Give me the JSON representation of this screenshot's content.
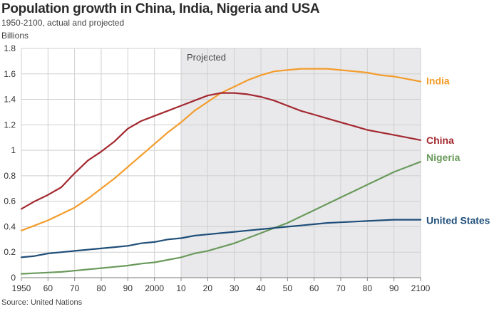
{
  "title": "Population growth in China, India, Nigeria and USA",
  "subtitle": "1950-2100, actual and projected",
  "source": "Source: United Nations",
  "chart_data": {
    "type": "line",
    "title": "Population growth in China, India, Nigeria and USA",
    "subtitle": "1950-2100, actual and projected",
    "ylabel": "Billions",
    "xlabel": "",
    "xlim": [
      1950,
      2100
    ],
    "ylim": [
      0,
      1.8
    ],
    "y_ticks": [
      0,
      0.2,
      0.4,
      0.6,
      0.8,
      1,
      1.2,
      1.4,
      1.6,
      1.8
    ],
    "y_tick_labels": [
      "0",
      "0.2",
      "0.4",
      "0.6",
      "0.8",
      "1",
      "1.2",
      "1.4",
      "1.6",
      "1.8"
    ],
    "x_ticks": [
      1950,
      1960,
      1970,
      1980,
      1990,
      2000,
      2010,
      2020,
      2030,
      2040,
      2050,
      2060,
      2070,
      2080,
      2090,
      2100
    ],
    "x_tick_labels": [
      "1950",
      "60",
      "70",
      "80",
      "90",
      "2000",
      "10",
      "20",
      "30",
      "40",
      "50",
      "60",
      "70",
      "80",
      "90",
      "2100"
    ],
    "grid": true,
    "legend": "direct labels at right end of each line",
    "projected_region": {
      "from": 2010,
      "to": 2100,
      "label": "Projected"
    },
    "series": [
      {
        "name": "India",
        "color": "#f39c2b",
        "x": [
          1950,
          1955,
          1960,
          1965,
          1970,
          1975,
          1980,
          1985,
          1990,
          1995,
          2000,
          2005,
          2010,
          2015,
          2020,
          2025,
          2030,
          2035,
          2040,
          2045,
          2050,
          2055,
          2060,
          2065,
          2070,
          2075,
          2080,
          2085,
          2090,
          2095,
          2100
        ],
        "values": [
          0.37,
          0.41,
          0.45,
          0.5,
          0.55,
          0.62,
          0.7,
          0.78,
          0.87,
          0.96,
          1.05,
          1.14,
          1.22,
          1.31,
          1.38,
          1.45,
          1.5,
          1.55,
          1.59,
          1.62,
          1.63,
          1.64,
          1.64,
          1.64,
          1.63,
          1.62,
          1.61,
          1.59,
          1.58,
          1.56,
          1.54
        ]
      },
      {
        "name": "China",
        "color": "#a3282f",
        "x": [
          1950,
          1955,
          1960,
          1965,
          1970,
          1975,
          1980,
          1985,
          1990,
          1995,
          2000,
          2005,
          2010,
          2015,
          2020,
          2025,
          2030,
          2035,
          2040,
          2045,
          2050,
          2055,
          2060,
          2065,
          2070,
          2075,
          2080,
          2085,
          2090,
          2095,
          2100
        ],
        "values": [
          0.54,
          0.6,
          0.65,
          0.71,
          0.82,
          0.92,
          0.99,
          1.07,
          1.17,
          1.23,
          1.27,
          1.31,
          1.35,
          1.39,
          1.43,
          1.45,
          1.45,
          1.44,
          1.42,
          1.39,
          1.35,
          1.31,
          1.28,
          1.25,
          1.22,
          1.19,
          1.16,
          1.14,
          1.12,
          1.1,
          1.08
        ]
      },
      {
        "name": "Nigeria",
        "color": "#6a9a5b",
        "x": [
          1950,
          1955,
          1960,
          1965,
          1970,
          1975,
          1980,
          1985,
          1990,
          1995,
          2000,
          2005,
          2010,
          2015,
          2020,
          2025,
          2030,
          2035,
          2040,
          2045,
          2050,
          2055,
          2060,
          2065,
          2070,
          2075,
          2080,
          2085,
          2090,
          2095,
          2100
        ],
        "values": [
          0.03,
          0.035,
          0.04,
          0.045,
          0.055,
          0.065,
          0.075,
          0.085,
          0.095,
          0.11,
          0.12,
          0.14,
          0.16,
          0.19,
          0.21,
          0.24,
          0.27,
          0.31,
          0.35,
          0.39,
          0.43,
          0.48,
          0.53,
          0.58,
          0.63,
          0.68,
          0.73,
          0.78,
          0.83,
          0.87,
          0.91
        ]
      },
      {
        "name": "United States",
        "color": "#1f4e79",
        "x": [
          1950,
          1955,
          1960,
          1965,
          1970,
          1975,
          1980,
          1985,
          1990,
          1995,
          2000,
          2005,
          2010,
          2015,
          2020,
          2025,
          2030,
          2035,
          2040,
          2045,
          2050,
          2055,
          2060,
          2065,
          2070,
          2075,
          2080,
          2085,
          2090,
          2095,
          2100
        ],
        "values": [
          0.16,
          0.17,
          0.19,
          0.2,
          0.21,
          0.22,
          0.23,
          0.24,
          0.25,
          0.27,
          0.28,
          0.3,
          0.31,
          0.33,
          0.34,
          0.35,
          0.36,
          0.37,
          0.38,
          0.39,
          0.4,
          0.41,
          0.42,
          0.43,
          0.435,
          0.44,
          0.445,
          0.45,
          0.455,
          0.455,
          0.455
        ]
      }
    ]
  }
}
